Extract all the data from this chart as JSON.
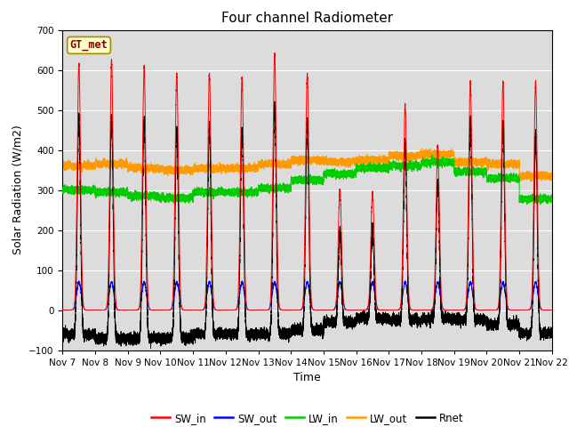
{
  "title": "Four channel Radiometer",
  "xlabel": "Time",
  "ylabel": "Solar Radiation (W/m2)",
  "ylim": [
    -100,
    700
  ],
  "yticks": [
    -100,
    0,
    100,
    200,
    300,
    400,
    500,
    600,
    700
  ],
  "n_days": 15,
  "start_day": 7,
  "colors": {
    "SW_in": "#ff0000",
    "SW_out": "#0000ff",
    "LW_in": "#00cc00",
    "LW_out": "#ff9900",
    "Rnet": "#000000"
  },
  "legend_label": "GT_met",
  "axes_facecolor": "#dcdcdc",
  "fig_facecolor": "#ffffff",
  "SW_in_peaks": [
    615,
    625,
    610,
    590,
    590,
    580,
    640,
    590,
    300,
    295,
    515,
    410,
    570,
    570,
    570
  ],
  "LW_in_base": [
    300,
    295,
    285,
    280,
    295,
    295,
    305,
    325,
    340,
    355,
    360,
    370,
    345,
    330,
    278
  ],
  "LW_out_base": [
    360,
    365,
    355,
    350,
    355,
    355,
    365,
    375,
    370,
    375,
    385,
    390,
    370,
    365,
    335
  ],
  "xtick_labels": [
    "Nov 7",
    "Nov 8",
    "Nov 9",
    "Nov 10",
    "Nov 11",
    "Nov 12",
    "Nov 13",
    "Nov 14",
    "Nov 15",
    "Nov 16",
    "Nov 17",
    "Nov 18",
    "Nov 19",
    "Nov 20",
    "Nov 21",
    "Nov 22"
  ]
}
